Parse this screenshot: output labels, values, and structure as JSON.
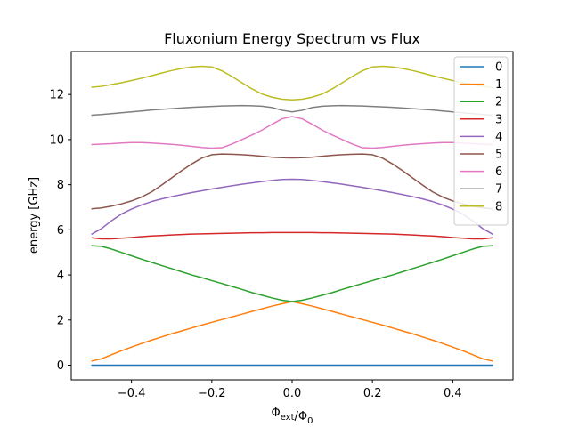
{
  "chart_data": {
    "type": "line",
    "title": "Fluxonium Energy Spectrum vs Flux",
    "xlabel": "Φ_ext/Φ_0",
    "ylabel": "energy [GHz]",
    "xlim": [
      -0.55,
      0.55
    ],
    "ylim": [
      -0.65,
      13.9
    ],
    "xticks": [
      -0.4,
      -0.2,
      0.0,
      0.2,
      0.4
    ],
    "xtick_labels": [
      "−0.4",
      "−0.2",
      "0.0",
      "0.2",
      "0.4"
    ],
    "yticks": [
      0,
      2,
      4,
      6,
      8,
      10,
      12
    ],
    "ytick_labels": [
      "0",
      "2",
      "4",
      "6",
      "8",
      "10",
      "12"
    ],
    "grid": false,
    "legend_position": "upper-right",
    "x": [
      -0.5,
      -0.475,
      -0.45,
      -0.425,
      -0.4,
      -0.375,
      -0.35,
      -0.325,
      -0.3,
      -0.275,
      -0.25,
      -0.225,
      -0.2,
      -0.175,
      -0.15,
      -0.125,
      -0.1,
      -0.075,
      -0.05,
      -0.025,
      0.0,
      0.025,
      0.05,
      0.075,
      0.1,
      0.125,
      0.15,
      0.175,
      0.2,
      0.225,
      0.25,
      0.275,
      0.3,
      0.325,
      0.35,
      0.375,
      0.4,
      0.425,
      0.45,
      0.475,
      0.5
    ],
    "series": [
      {
        "name": "0",
        "color": "#1f77b4",
        "values": [
          0.0,
          0.0,
          0.0,
          0.0,
          0.0,
          0.0,
          0.0,
          0.0,
          0.0,
          0.0,
          0.0,
          0.0,
          0.0,
          0.0,
          0.0,
          0.0,
          0.0,
          0.0,
          0.0,
          0.0,
          0.0,
          0.0,
          0.0,
          0.0,
          0.0,
          0.0,
          0.0,
          0.0,
          0.0,
          0.0,
          0.0,
          0.0,
          0.0,
          0.0,
          0.0,
          0.0,
          0.0,
          0.0,
          0.0,
          0.0,
          0.0
        ]
      },
      {
        "name": "1",
        "color": "#ff7f0e",
        "values": [
          0.18,
          0.28,
          0.46,
          0.64,
          0.8,
          0.96,
          1.11,
          1.25,
          1.39,
          1.52,
          1.65,
          1.78,
          1.9,
          2.02,
          2.14,
          2.26,
          2.38,
          2.5,
          2.62,
          2.72,
          2.82,
          2.72,
          2.62,
          2.5,
          2.38,
          2.26,
          2.14,
          2.02,
          1.9,
          1.78,
          1.65,
          1.52,
          1.39,
          1.25,
          1.11,
          0.96,
          0.8,
          0.64,
          0.46,
          0.28,
          0.18
        ]
      },
      {
        "name": "2",
        "color": "#2ca02c",
        "values": [
          5.3,
          5.27,
          5.15,
          5.0,
          4.85,
          4.7,
          4.56,
          4.42,
          4.28,
          4.14,
          4.0,
          3.88,
          3.75,
          3.62,
          3.49,
          3.36,
          3.22,
          3.1,
          2.98,
          2.88,
          2.82,
          2.88,
          2.98,
          3.1,
          3.22,
          3.36,
          3.49,
          3.62,
          3.75,
          3.88,
          4.0,
          4.14,
          4.28,
          4.42,
          4.56,
          4.7,
          4.85,
          5.0,
          5.15,
          5.27,
          5.3
        ]
      },
      {
        "name": "3",
        "color": "#d62728",
        "values": [
          5.65,
          5.6,
          5.6,
          5.63,
          5.66,
          5.7,
          5.73,
          5.75,
          5.77,
          5.79,
          5.81,
          5.82,
          5.83,
          5.84,
          5.85,
          5.86,
          5.87,
          5.87,
          5.88,
          5.88,
          5.88,
          5.88,
          5.88,
          5.87,
          5.87,
          5.86,
          5.85,
          5.84,
          5.83,
          5.82,
          5.81,
          5.79,
          5.77,
          5.75,
          5.73,
          5.7,
          5.66,
          5.63,
          5.6,
          5.6,
          5.65
        ]
      },
      {
        "name": "4",
        "color": "#9467bd",
        "values": [
          5.8,
          6.05,
          6.4,
          6.7,
          6.92,
          7.1,
          7.25,
          7.37,
          7.47,
          7.56,
          7.65,
          7.73,
          7.81,
          7.88,
          7.95,
          8.02,
          8.08,
          8.14,
          8.19,
          8.23,
          8.24,
          8.23,
          8.19,
          8.14,
          8.08,
          8.02,
          7.95,
          7.88,
          7.81,
          7.73,
          7.65,
          7.56,
          7.47,
          7.37,
          7.25,
          7.1,
          6.92,
          6.7,
          6.4,
          6.05,
          5.8
        ]
      },
      {
        "name": "5",
        "color": "#8c564b",
        "values": [
          6.93,
          6.97,
          7.05,
          7.15,
          7.28,
          7.45,
          7.68,
          7.98,
          8.3,
          8.62,
          8.92,
          9.18,
          9.33,
          9.36,
          9.35,
          9.33,
          9.3,
          9.26,
          9.22,
          9.2,
          9.19,
          9.2,
          9.22,
          9.26,
          9.3,
          9.33,
          9.35,
          9.36,
          9.33,
          9.18,
          8.92,
          8.62,
          8.3,
          7.98,
          7.68,
          7.45,
          7.28,
          7.15,
          7.05,
          6.97,
          6.93
        ]
      },
      {
        "name": "6",
        "color": "#e377c2",
        "values": [
          9.78,
          9.8,
          9.82,
          9.85,
          9.87,
          9.87,
          9.85,
          9.82,
          9.79,
          9.75,
          9.7,
          9.65,
          9.62,
          9.64,
          9.8,
          10.0,
          10.2,
          10.42,
          10.68,
          10.92,
          11.02,
          10.92,
          10.68,
          10.42,
          10.2,
          10.0,
          9.8,
          9.64,
          9.62,
          9.65,
          9.7,
          9.75,
          9.79,
          9.82,
          9.85,
          9.87,
          9.87,
          9.85,
          9.82,
          9.8,
          9.78
        ]
      },
      {
        "name": "7",
        "color": "#7f7f7f",
        "values": [
          11.08,
          11.11,
          11.15,
          11.19,
          11.23,
          11.27,
          11.31,
          11.34,
          11.37,
          11.4,
          11.43,
          11.45,
          11.47,
          11.49,
          11.5,
          11.51,
          11.5,
          11.48,
          11.42,
          11.3,
          11.23,
          11.3,
          11.42,
          11.48,
          11.5,
          11.51,
          11.5,
          11.49,
          11.47,
          11.45,
          11.43,
          11.4,
          11.37,
          11.34,
          11.31,
          11.27,
          11.23,
          11.19,
          11.15,
          11.11,
          11.08
        ]
      },
      {
        "name": "8",
        "color": "#bcbd22",
        "values": [
          12.32,
          12.36,
          12.44,
          12.52,
          12.62,
          12.72,
          12.83,
          12.95,
          13.06,
          13.15,
          13.22,
          13.25,
          13.22,
          13.05,
          12.8,
          12.52,
          12.25,
          12.02,
          11.88,
          11.79,
          11.76,
          11.79,
          11.88,
          12.02,
          12.25,
          12.52,
          12.8,
          13.05,
          13.22,
          13.25,
          13.22,
          13.15,
          13.06,
          12.95,
          12.83,
          12.72,
          12.62,
          12.52,
          12.44,
          12.36,
          12.32
        ]
      }
    ]
  }
}
